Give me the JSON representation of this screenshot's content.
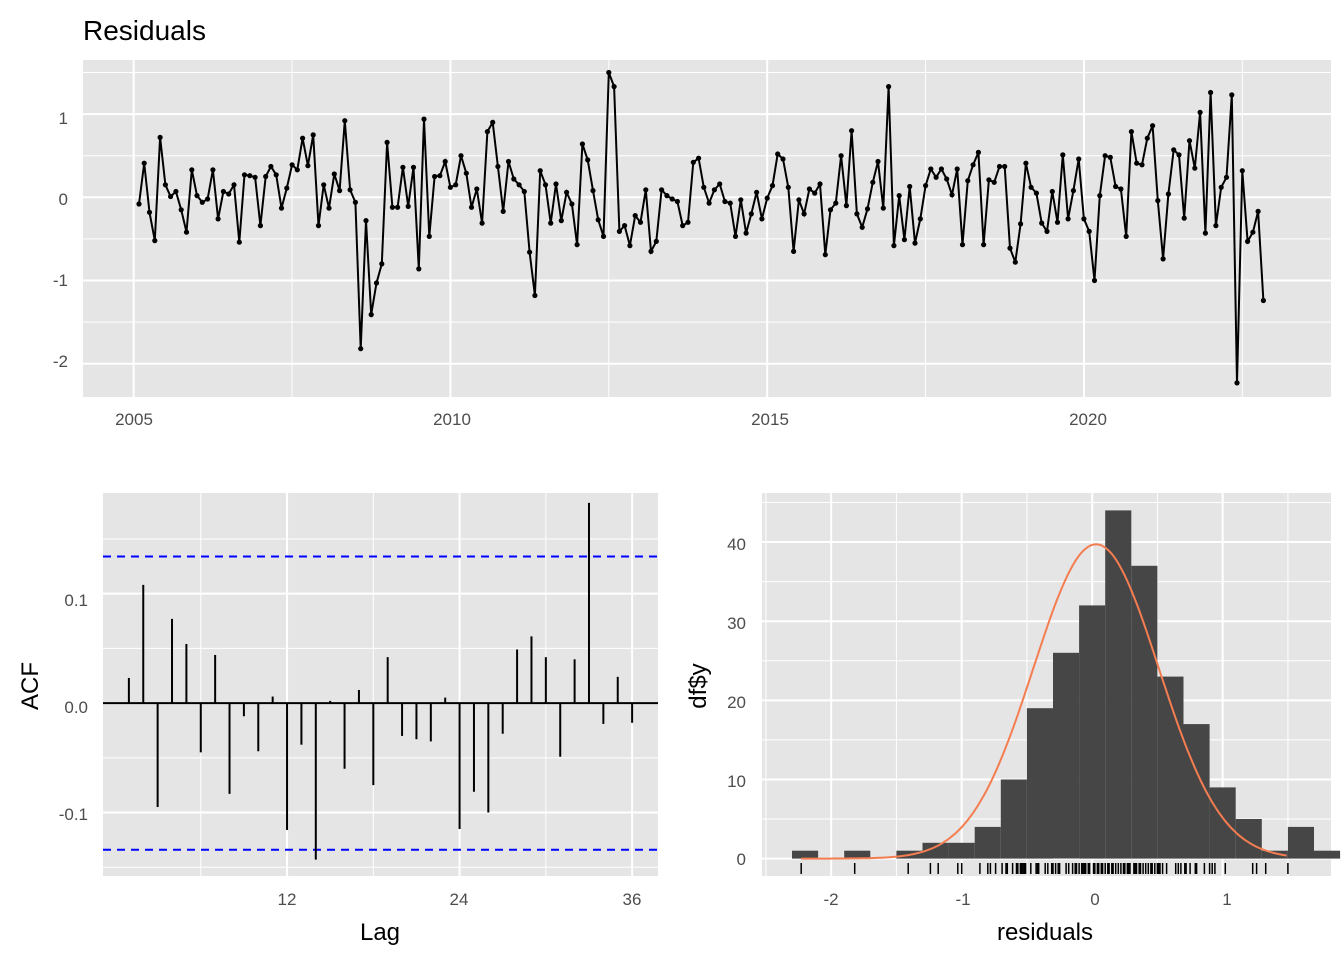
{
  "colors": {
    "panel": "#e5e5e5",
    "grid": "#ffffff",
    "series": "#000000",
    "ci": "#0000ff",
    "hist": "#464646",
    "density": "#f47d51"
  },
  "chart_data": [
    {
      "type": "line",
      "title": "Residuals",
      "xlabel": "",
      "ylabel": "",
      "grid": true,
      "xlim": [
        2004.2,
        2023.9
      ],
      "ylim": [
        -2.4,
        1.65
      ],
      "xticks": [
        "2005",
        "2010",
        "2015",
        "2020"
      ],
      "yticks": [
        "1",
        "0",
        "-1",
        "-2"
      ],
      "start_year": 2005,
      "start_month": 2,
      "y": [
        -0.08,
        0.41,
        -0.18,
        -0.52,
        0.72,
        0.15,
        0.01,
        0.07,
        -0.15,
        -0.42,
        0.33,
        0.02,
        -0.06,
        -0.02,
        0.33,
        -0.26,
        0.07,
        0.04,
        0.15,
        -0.54,
        0.27,
        0.26,
        0.24,
        -0.34,
        0.25,
        0.37,
        0.27,
        -0.13,
        0.11,
        0.39,
        0.33,
        0.71,
        0.38,
        0.75,
        -0.34,
        0.15,
        -0.13,
        0.28,
        0.08,
        0.92,
        0.09,
        -0.06,
        -1.82,
        -0.28,
        -1.41,
        -1.03,
        -0.8,
        0.66,
        -0.12,
        -0.12,
        0.36,
        -0.11,
        0.36,
        -0.86,
        0.94,
        -0.47,
        0.25,
        0.26,
        0.43,
        0.12,
        0.15,
        0.5,
        0.29,
        -0.12,
        0.1,
        -0.31,
        0.79,
        0.9,
        0.37,
        -0.17,
        0.43,
        0.22,
        0.15,
        0.07,
        -0.66,
        -1.18,
        0.32,
        0.15,
        -0.31,
        0.16,
        -0.28,
        0.06,
        -0.08,
        -0.57,
        0.64,
        0.45,
        0.08,
        -0.27,
        -0.47,
        1.5,
        1.33,
        -0.41,
        -0.34,
        -0.58,
        -0.22,
        -0.3,
        0.09,
        -0.65,
        -0.53,
        0.09,
        0.02,
        -0.02,
        -0.05,
        -0.34,
        -0.3,
        0.42,
        0.47,
        0.12,
        -0.07,
        0.09,
        0.16,
        -0.05,
        -0.07,
        -0.47,
        -0.03,
        -0.43,
        -0.2,
        0.06,
        -0.26,
        -0.01,
        0.14,
        0.52,
        0.46,
        0.12,
        -0.65,
        -0.03,
        -0.2,
        0.1,
        0.05,
        0.16,
        -0.69,
        -0.15,
        -0.07,
        0.5,
        -0.1,
        0.8,
        -0.2,
        -0.36,
        -0.14,
        0.18,
        0.43,
        -0.13,
        1.33,
        -0.58,
        0.02,
        -0.51,
        0.13,
        -0.55,
        -0.26,
        0.14,
        0.34,
        0.24,
        0.34,
        0.22,
        0.03,
        0.34,
        -0.57,
        0.2,
        0.39,
        0.54,
        -0.57,
        0.21,
        0.18,
        0.37,
        0.37,
        -0.61,
        -0.78,
        -0.32,
        0.41,
        0.12,
        0.05,
        -0.31,
        -0.41,
        0.07,
        -0.3,
        0.51,
        -0.26,
        0.08,
        0.46,
        -0.26,
        -0.41,
        -1.0,
        0.02,
        0.5,
        0.48,
        0.13,
        0.1,
        -0.47,
        0.79,
        0.41,
        0.39,
        0.71,
        0.86,
        -0.04,
        -0.74,
        0.04,
        0.57,
        0.51,
        -0.25,
        0.68,
        0.35,
        1.02,
        -0.43,
        1.26,
        -0.34,
        0.12,
        0.24,
        1.23,
        -2.23,
        0.32,
        -0.53,
        -0.42,
        -0.17,
        -1.24
      ]
    },
    {
      "type": "bar",
      "title": "",
      "xlabel": "Lag",
      "ylabel": "ACF",
      "grid": true,
      "xlim": [
        -0.8,
        37.8
      ],
      "ylim": [
        -0.158,
        0.192
      ],
      "xticks": [
        "12",
        "24",
        "36"
      ],
      "yticks": [
        "0.1",
        "0.0",
        "-0.1"
      ],
      "ci": [
        0.134,
        -0.134
      ],
      "lags": [
        1,
        2,
        3,
        4,
        5,
        6,
        7,
        8,
        9,
        10,
        11,
        12,
        13,
        14,
        15,
        16,
        17,
        18,
        19,
        20,
        21,
        22,
        23,
        24,
        25,
        26,
        27,
        28,
        29,
        30,
        31,
        32,
        33,
        34,
        35,
        36
      ],
      "values": [
        0.023,
        0.108,
        -0.095,
        0.077,
        0.054,
        -0.045,
        0.044,
        -0.083,
        -0.012,
        -0.044,
        0.006,
        -0.116,
        -0.038,
        -0.143,
        0.002,
        -0.06,
        0.012,
        -0.075,
        0.042,
        -0.03,
        -0.033,
        -0.035,
        0.005,
        -0.115,
        -0.081,
        -0.1,
        -0.028,
        0.049,
        0.061,
        0.042,
        -0.049,
        0.04,
        0.183,
        -0.019,
        0.024,
        -0.018
      ]
    },
    {
      "type": "histogram",
      "title": "",
      "xlabel": "residuals",
      "ylabel": "df$y",
      "grid": true,
      "xlim": [
        -2.53,
        1.83
      ],
      "ylim": [
        -2.2,
        46.2
      ],
      "xticks": [
        "-2",
        "-1",
        "0",
        "1"
      ],
      "yticks": [
        "40",
        "30",
        "20",
        "10",
        "0"
      ],
      "bin_start": -2.3,
      "bin_width": 0.2,
      "counts": [
        1,
        0,
        1,
        0,
        1,
        2,
        2,
        4,
        10,
        19,
        26,
        32,
        44,
        37,
        23,
        17,
        9,
        5,
        1,
        4,
        1
      ],
      "density_mean": 0.03,
      "density_sd": 0.48,
      "rug": [
        -2.23,
        -1.82,
        -1.41,
        -1.24,
        -1.18,
        -1.03,
        -1.0,
        -0.86,
        -0.8,
        -0.78,
        -0.74,
        -0.69,
        -0.66,
        -0.65,
        -0.61,
        -0.58,
        -0.57,
        -0.55,
        -0.54,
        -0.53,
        -0.52,
        -0.51,
        -0.47,
        -0.43,
        -0.42,
        -0.41,
        -0.36,
        -0.34,
        -0.31,
        -0.3,
        -0.28,
        -0.26,
        -0.25,
        -0.2,
        -0.18,
        -0.15,
        -0.13,
        -0.12,
        -0.1,
        -0.08,
        -0.07,
        -0.06,
        -0.05,
        -0.03,
        -0.02,
        0.01,
        0.02,
        0.04,
        0.05,
        0.07,
        0.08,
        0.1,
        0.12,
        0.13,
        0.15,
        0.16,
        0.18,
        0.2,
        0.22,
        0.24,
        0.25,
        0.27,
        0.28,
        0.29,
        0.32,
        0.33,
        0.34,
        0.36,
        0.37,
        0.39,
        0.41,
        0.43,
        0.45,
        0.46,
        0.48,
        0.5,
        0.51,
        0.52,
        0.54,
        0.57,
        0.64,
        0.66,
        0.68,
        0.71,
        0.72,
        0.75,
        0.79,
        0.8,
        0.86,
        0.9,
        0.92,
        0.94,
        1.02,
        1.23,
        1.26,
        1.33,
        1.5
      ]
    }
  ]
}
